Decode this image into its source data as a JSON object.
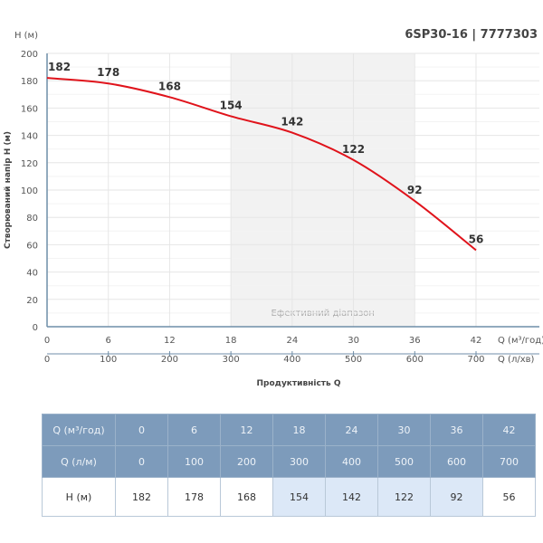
{
  "title": "6SP30-16 | 7777303",
  "chart_data": {
    "type": "line",
    "y_unit_label": "H (м)",
    "ylabel": "Створюваний напір H (м)",
    "xlabel": "Продуктивність Q",
    "x_unit_label": "Q (м³/год)",
    "x2_unit_label": "Q (л/хв)",
    "ylim": [
      0,
      200
    ],
    "yticks": [
      0,
      20,
      40,
      60,
      80,
      100,
      120,
      140,
      160,
      180,
      200
    ],
    "xlim": [
      0,
      42
    ],
    "x": [
      0,
      6,
      12,
      18,
      24,
      30,
      36,
      42
    ],
    "x2": [
      0,
      100,
      200,
      300,
      400,
      500,
      600,
      700
    ],
    "values": [
      182,
      178,
      168,
      154,
      142,
      122,
      92,
      56
    ],
    "efficient_range": [
      18,
      36
    ],
    "efficient_range_label": "Ефективний діапазон",
    "grid": true,
    "line_color": "#e0131b"
  },
  "table": {
    "rows": [
      {
        "label": "Q (м³/год)",
        "cells": [
          "0",
          "6",
          "12",
          "18",
          "24",
          "30",
          "36",
          "42"
        ]
      },
      {
        "label": "Q (л/м)",
        "cells": [
          "0",
          "100",
          "200",
          "300",
          "400",
          "500",
          "600",
          "700"
        ]
      },
      {
        "label": "H (м)",
        "cells": [
          "182",
          "178",
          "168",
          "154",
          "142",
          "122",
          "92",
          "56"
        ]
      }
    ]
  }
}
